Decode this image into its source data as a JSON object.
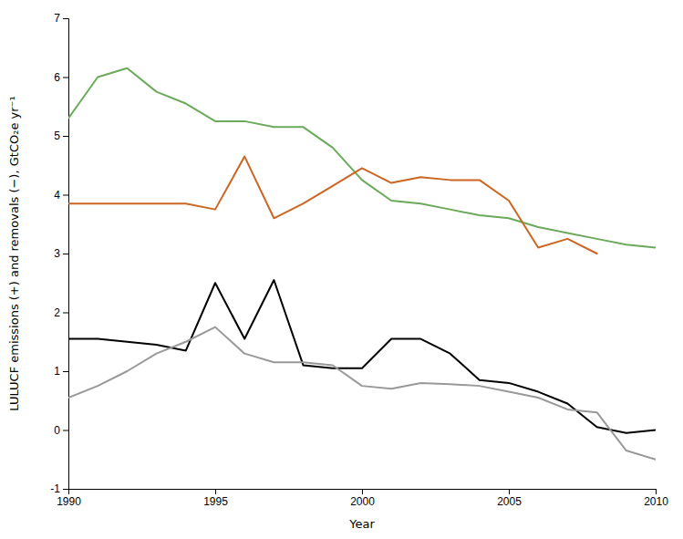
{
  "chart_data": {
    "type": "line",
    "x": [
      1990,
      1991,
      1992,
      1993,
      1994,
      1995,
      1996,
      1997,
      1998,
      1999,
      2000,
      2001,
      2002,
      2003,
      2004,
      2005,
      2006,
      2007,
      2008,
      2009,
      2010
    ],
    "series": [
      {
        "color": "#6aaa5a",
        "values": [
          5.3,
          6.0,
          6.15,
          5.75,
          5.55,
          5.25,
          5.25,
          5.15,
          5.15,
          4.8,
          4.25,
          3.9,
          3.85,
          3.75,
          3.65,
          3.6,
          3.45,
          3.35,
          3.25,
          3.15,
          3.1
        ]
      },
      {
        "color": "#cc6622",
        "values": [
          3.85,
          3.85,
          3.85,
          3.85,
          3.85,
          3.75,
          4.65,
          3.6,
          3.85,
          4.15,
          4.45,
          4.2,
          4.3,
          4.25,
          4.25,
          3.9,
          3.1,
          3.25,
          3.0,
          null,
          null
        ]
      },
      {
        "color": "#000000",
        "values": [
          1.55,
          1.55,
          1.5,
          1.45,
          1.35,
          2.5,
          1.55,
          2.55,
          1.1,
          1.05,
          1.05,
          1.55,
          1.55,
          1.3,
          0.85,
          0.8,
          0.65,
          0.45,
          0.05,
          -0.05,
          0.0
        ]
      },
      {
        "color": "#999999",
        "values": [
          0.55,
          0.75,
          1.0,
          1.3,
          1.5,
          1.75,
          1.3,
          1.15,
          1.15,
          1.1,
          0.75,
          0.7,
          0.8,
          0.78,
          0.75,
          0.65,
          0.55,
          0.35,
          0.3,
          -0.35,
          -0.5
        ]
      }
    ],
    "xlim": [
      1990,
      2010
    ],
    "ylim": [
      -1,
      7
    ],
    "xticks": [
      1990,
      1995,
      2000,
      2005,
      2010
    ],
    "yticks": [
      -1,
      0,
      1,
      2,
      3,
      4,
      5,
      6,
      7
    ],
    "x_label": "Year",
    "y_label": "LULUCF emissions (+) and removals (−), GtCO₂e yr⁻¹",
    "grid": false
  }
}
